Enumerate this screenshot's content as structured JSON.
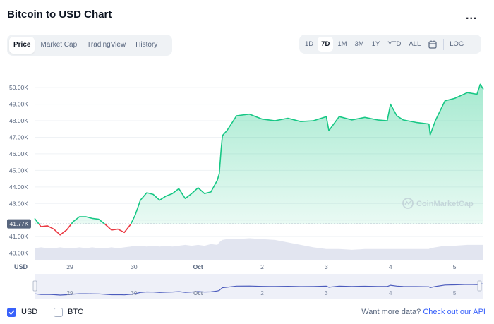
{
  "header": {
    "title": "Bitcoin to USD Chart",
    "more_label": "..."
  },
  "tabs": [
    {
      "label": "Price",
      "active": true
    },
    {
      "label": "Market Cap",
      "active": false
    },
    {
      "label": "TradingView",
      "active": false
    },
    {
      "label": "History",
      "active": false
    }
  ],
  "ranges": [
    {
      "label": "1D",
      "active": false
    },
    {
      "label": "7D",
      "active": true
    },
    {
      "label": "1M",
      "active": false
    },
    {
      "label": "3M",
      "active": false
    },
    {
      "label": "1Y",
      "active": false
    },
    {
      "label": "YTD",
      "active": false
    },
    {
      "label": "ALL",
      "active": false
    }
  ],
  "calendar_icon": "calendar-icon",
  "log_label": "LOG",
  "watermark": "CoinMarketCap",
  "currency_label": "USD",
  "current_price_label": "41.77K",
  "colors": {
    "up": "#16c784",
    "down": "#ea3943",
    "volume": "#dde0ed",
    "brand": "#3861fb"
  },
  "chart_data": {
    "type": "line",
    "ylim": [
      39600,
      51200
    ],
    "yticks": [
      {
        "v": 40000,
        "label": "40.00K"
      },
      {
        "v": 41000,
        "label": "41.00K"
      },
      {
        "v": 42000,
        "label": ""
      },
      {
        "v": 43000,
        "label": "43.00K"
      },
      {
        "v": 44000,
        "label": "44.00K"
      },
      {
        "v": 45000,
        "label": "45.00K"
      },
      {
        "v": 46000,
        "label": "46.00K"
      },
      {
        "v": 47000,
        "label": "47.00K"
      },
      {
        "v": 48000,
        "label": "48.00K"
      },
      {
        "v": 49000,
        "label": "49.00K"
      },
      {
        "v": 50000,
        "label": "50.00K"
      }
    ],
    "xlim": [
      28.45,
      35.45
    ],
    "xticks": [
      {
        "x": 29,
        "label": "29"
      },
      {
        "x": 30,
        "label": "30"
      },
      {
        "x": 31,
        "label": "Oct"
      },
      {
        "x": 32,
        "label": "2"
      },
      {
        "x": 33,
        "label": "3"
      },
      {
        "x": 34,
        "label": "4"
      },
      {
        "x": 35,
        "label": "5"
      }
    ],
    "baseline": 41770,
    "series": [
      {
        "x": [
          28.45,
          28.55,
          28.65,
          28.75,
          28.85,
          28.95,
          29.05,
          29.15,
          29.25,
          29.35,
          29.45,
          29.55,
          29.65,
          29.75,
          29.85,
          29.95,
          30.02,
          30.1,
          30.2,
          30.3,
          30.4,
          30.5,
          30.6,
          30.7,
          30.8,
          30.9,
          31.0,
          31.1,
          31.2,
          31.3,
          31.33,
          31.36,
          31.38,
          31.45,
          31.6,
          31.8,
          32.0,
          32.2,
          32.4,
          32.6,
          32.8,
          33.0,
          33.04,
          33.2,
          33.4,
          33.6,
          33.8,
          33.95,
          34.0,
          34.1,
          34.2,
          34.4,
          34.6,
          34.62,
          34.7,
          34.85,
          35.0,
          35.2,
          35.35,
          35.4,
          35.45
        ],
        "y": [
          42100,
          41600,
          41650,
          41450,
          41100,
          41400,
          41900,
          42200,
          42200,
          42100,
          42050,
          41750,
          41400,
          41450,
          41250,
          41750,
          42300,
          43200,
          43650,
          43550,
          43200,
          43450,
          43600,
          43900,
          43300,
          43600,
          43950,
          43600,
          43700,
          44400,
          44800,
          46300,
          47100,
          47400,
          48300,
          48400,
          48100,
          48000,
          48150,
          47950,
          48000,
          48250,
          47400,
          48250,
          48050,
          48200,
          48050,
          48000,
          49000,
          48300,
          48050,
          47900,
          47800,
          47150,
          48000,
          49200,
          49350,
          49700,
          49600,
          50200,
          49900
        ],
        "volume": [
          40300,
          40350,
          40300,
          40300,
          40350,
          40300,
          40300,
          40350,
          40300,
          40350,
          40300,
          40300,
          40350,
          40300,
          40350,
          40400,
          40450,
          40450,
          40400,
          40450,
          40400,
          40450,
          40400,
          40450,
          40500,
          40450,
          40500,
          40450,
          40550,
          40500,
          40650,
          40750,
          40800,
          40850,
          40850,
          40900,
          40850,
          40800,
          40650,
          40500,
          40350,
          40250,
          40250,
          40250,
          40200,
          40250,
          40250,
          40250,
          40250,
          40250,
          40250,
          40250,
          40250,
          40300,
          40350,
          40450,
          40450,
          40500,
          40500,
          40500,
          40500
        ]
      }
    ]
  },
  "footer": {
    "usd_label": "USD",
    "btc_label": "BTC",
    "api_text": "Want more data?",
    "api_link": "Check out our API"
  }
}
